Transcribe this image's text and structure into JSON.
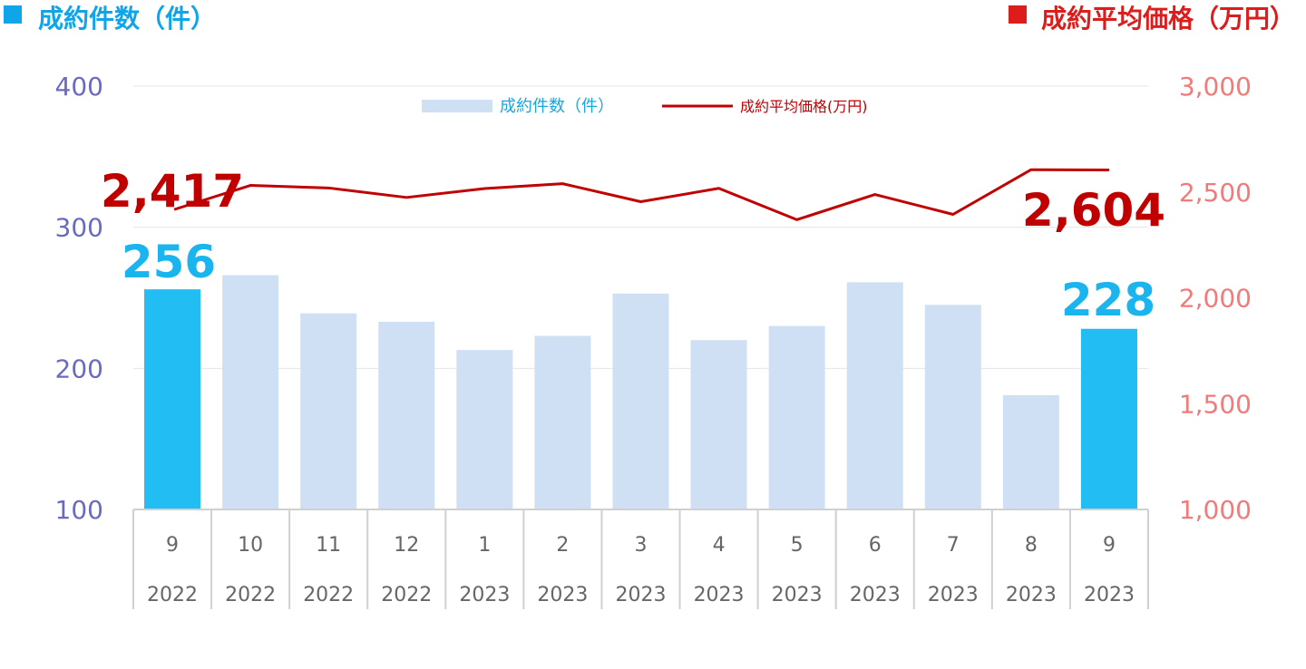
{
  "titles": {
    "left": "成約件数（件）",
    "right": "成約平均価格（万円）",
    "left_color": "#0ea5e9",
    "right_color": "#dd1c1c"
  },
  "legend": {
    "bar": "成約件数（件）",
    "line": "成約平均価格(万円)"
  },
  "colors": {
    "bar_default": "#cfe0f5",
    "bar_highlight": "#22bdf2",
    "line": "#c00000",
    "left_axis": "#6a6bc0",
    "right_axis": "#f07b7b"
  },
  "chart_data": {
    "type": "bar+line",
    "categories": [
      "9",
      "10",
      "11",
      "12",
      "1",
      "2",
      "3",
      "4",
      "5",
      "6",
      "7",
      "8",
      "9"
    ],
    "years": [
      "2022",
      "2022",
      "2022",
      "2022",
      "2023",
      "2023",
      "2023",
      "2023",
      "2023",
      "2023",
      "2023",
      "2023",
      "2023"
    ],
    "series": [
      {
        "type": "bar",
        "axis": "left",
        "values": [
          256,
          266,
          239,
          233,
          213,
          223,
          253,
          220,
          230,
          261,
          245,
          181,
          228
        ],
        "highlight": [
          true,
          false,
          false,
          false,
          false,
          false,
          false,
          false,
          false,
          false,
          false,
          false,
          true
        ]
      },
      {
        "type": "line",
        "axis": "right",
        "values": [
          2417,
          2531,
          2519,
          2474,
          2516,
          2539,
          2454,
          2517,
          2369,
          2488,
          2394,
          2605,
          2604
        ]
      }
    ],
    "y_left": {
      "min": 100,
      "max": 400,
      "ticks": [
        "100",
        "200",
        "300",
        "400"
      ]
    },
    "y_right": {
      "min": 1000,
      "max": 3000,
      "ticks": [
        "1,000",
        "1,500",
        "2,000",
        "2,500",
        "3,000"
      ]
    },
    "grid": true,
    "annotations": {
      "bar_first": "256",
      "bar_last": "228",
      "line_first": "2,417",
      "line_last": "2,604"
    }
  }
}
